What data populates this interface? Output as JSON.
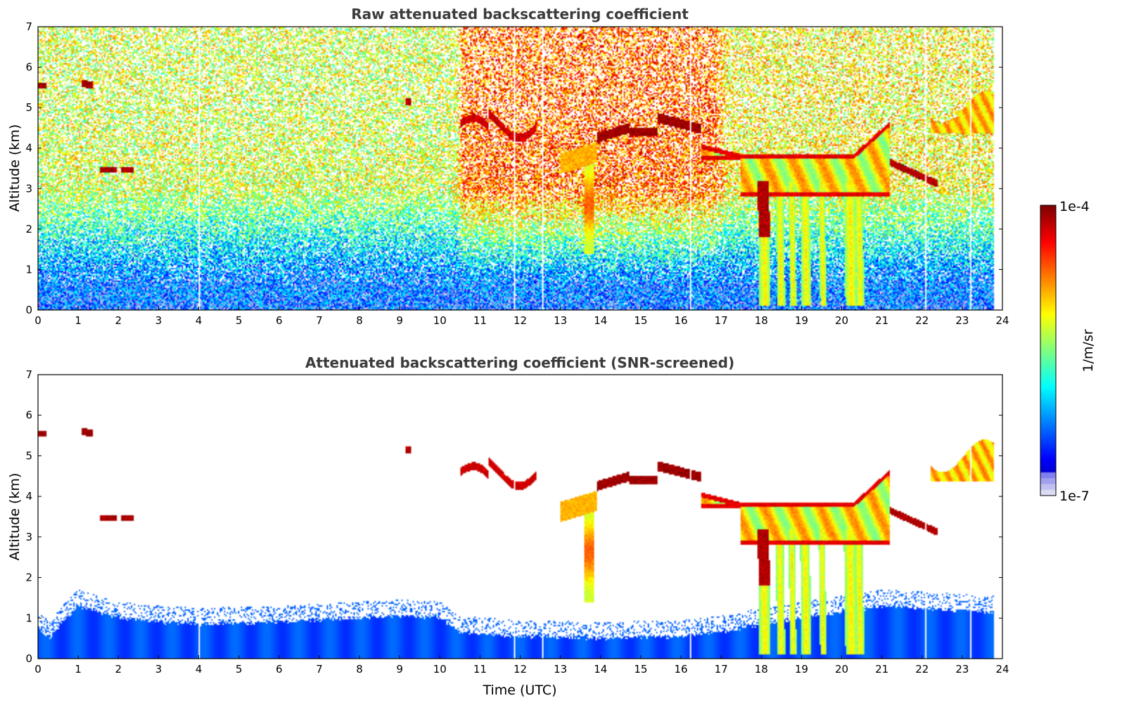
{
  "chart_data": [
    {
      "type": "heatmap",
      "title": "Raw attenuated backscattering coefficient",
      "xlabel": "",
      "ylabel": "Altitude (km)",
      "xlim": [
        0,
        24
      ],
      "ylim": [
        0,
        7
      ],
      "xticks": [
        "0",
        "1",
        "2",
        "3",
        "4",
        "5",
        "6",
        "7",
        "8",
        "9",
        "10",
        "11",
        "12",
        "13",
        "14",
        "15",
        "16",
        "17",
        "18",
        "19",
        "20",
        "21",
        "22",
        "23",
        "24"
      ],
      "yticks": [
        "0",
        "1",
        "2",
        "3",
        "4",
        "5",
        "6",
        "7"
      ],
      "data_end_hour": 23.8,
      "gap_times": [
        0.1,
        1.75,
        4.0,
        11.85,
        12.55,
        16.25,
        22.1,
        23.2
      ],
      "background": [
        {
          "x_range": [
            0,
            10.5
          ],
          "alt_low_1e7_to_1e6": 0.6,
          "alt_noisy_to_signal": 3.0,
          "typical_value_above_3km": "5e-6"
        },
        {
          "x_range": [
            10.5,
            17.0
          ],
          "typical_value_above_3km": "2e-5"
        },
        {
          "x_range": [
            17.0,
            23.8
          ],
          "typical_value_above_3km": "8e-6"
        }
      ],
      "features": [
        {
          "time_range": [
            0.0,
            0.2
          ],
          "alt": 5.55,
          "level": "1e-4"
        },
        {
          "time_range": [
            1.1,
            1.35
          ],
          "alt": 5.6,
          "level": "1e-4"
        },
        {
          "time_range": [
            1.55,
            2.45
          ],
          "alt": 3.45,
          "level": "1e-4"
        },
        {
          "time_range": [
            9.15,
            9.3
          ],
          "alt": 5.15,
          "level": "1e-4"
        },
        {
          "time_range": [
            10.5,
            12.4
          ],
          "alt": 4.5,
          "level": "8e-5"
        },
        {
          "time_range": [
            13.5,
            13.9
          ],
          "alt_range": [
            1.5,
            3.9
          ],
          "level": "3e-5"
        },
        {
          "time_range": [
            13.9,
            16.5
          ],
          "alt": 4.5,
          "level": "1e-4"
        },
        {
          "time_range": [
            16.5,
            21.2
          ],
          "alt_range": [
            2.8,
            4.6
          ],
          "level": "4e-5"
        },
        {
          "time_range": [
            18.0,
            20.5
          ],
          "alt_range": [
            0.1,
            3.2
          ],
          "level": "precipitation streaks"
        },
        {
          "time_range": [
            21.2,
            22.4
          ],
          "alt_range": [
            3.1,
            3.7
          ],
          "level": "1e-4"
        },
        {
          "time_range": [
            22.2,
            23.8
          ],
          "alt_range": [
            4.3,
            5.8
          ],
          "level": "3e-5"
        }
      ]
    },
    {
      "type": "heatmap",
      "title": "Attenuated backscattering coefficient (SNR-screened)",
      "xlabel": "Time (UTC)",
      "ylabel": "Altitude (km)",
      "xlim": [
        0,
        24
      ],
      "ylim": [
        0,
        7
      ],
      "xticks": [
        "0",
        "1",
        "2",
        "3",
        "4",
        "5",
        "6",
        "7",
        "8",
        "9",
        "10",
        "11",
        "12",
        "13",
        "14",
        "15",
        "16",
        "17",
        "18",
        "19",
        "20",
        "21",
        "22",
        "23",
        "24"
      ],
      "yticks": [
        "0",
        "1",
        "2",
        "3",
        "4",
        "5",
        "6",
        "7"
      ],
      "screened_mask_colour": "#ffffff",
      "boundary_layer_top_km": [
        [
          0.0,
          0.75
        ],
        [
          0.3,
          0.5
        ],
        [
          0.6,
          0.9
        ],
        [
          1.0,
          1.3
        ],
        [
          2.0,
          1.0
        ],
        [
          3.0,
          0.9
        ],
        [
          4.0,
          0.85
        ],
        [
          6.0,
          0.9
        ],
        [
          8.0,
          1.0
        ],
        [
          9.0,
          1.05
        ],
        [
          10.0,
          1.0
        ],
        [
          10.5,
          0.65
        ],
        [
          12.0,
          0.55
        ],
        [
          14.0,
          0.5
        ],
        [
          16.0,
          0.55
        ],
        [
          17.0,
          0.65
        ],
        [
          18.0,
          0.85
        ],
        [
          21.0,
          1.3
        ],
        [
          23.8,
          1.15
        ]
      ],
      "features": [
        {
          "time_range": [
            0.0,
            0.2
          ],
          "alt": 5.55,
          "level": "1e-4"
        },
        {
          "time_range": [
            1.1,
            1.35
          ],
          "alt": 5.6,
          "level": "1e-4"
        },
        {
          "time_range": [
            1.55,
            2.45
          ],
          "alt": 3.45,
          "level": "1e-4"
        },
        {
          "time_range": [
            10.5,
            12.4
          ],
          "alt": 4.6,
          "level": "8e-5"
        },
        {
          "time_range": [
            13.5,
            13.9
          ],
          "alt_range": [
            1.2,
            3.9
          ],
          "level": "3e-5"
        },
        {
          "time_range": [
            13.9,
            16.5
          ],
          "alt": 4.5,
          "level": "1e-4"
        },
        {
          "time_range": [
            16.5,
            21.2
          ],
          "alt_range": [
            2.8,
            4.6
          ],
          "level": "4e-5"
        },
        {
          "time_range": [
            18.0,
            20.5
          ],
          "alt_range": [
            0.1,
            3.2
          ],
          "level": "precipitation streaks"
        },
        {
          "time_range": [
            21.2,
            22.4
          ],
          "alt_range": [
            3.1,
            3.7
          ],
          "level": "1e-4"
        },
        {
          "time_range": [
            22.2,
            23.8
          ],
          "alt_range": [
            4.3,
            5.8
          ],
          "level": "3e-5"
        }
      ]
    }
  ],
  "colorbar": {
    "label": "1/m/sr",
    "min_label": "1e-7",
    "max_label": "1e-4",
    "scale": "log",
    "colormap": "jet",
    "under_colours": [
      "#dcdcf5",
      "#c0c0f0",
      "#a0a0ee",
      "#8080f0"
    ]
  }
}
